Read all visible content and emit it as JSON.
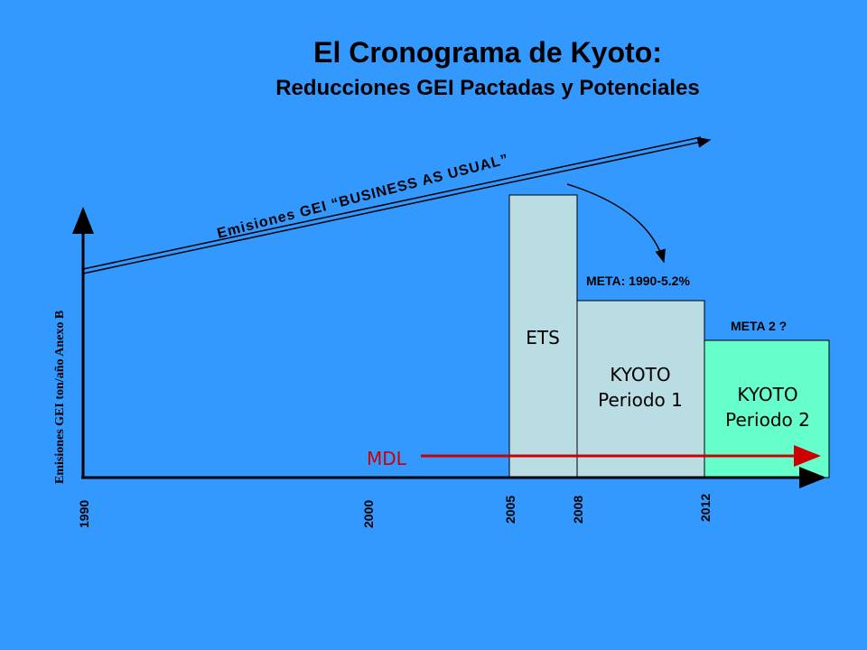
{
  "title": "El Cronograma de Kyoto:",
  "subtitle": "Reducciones GEI Pactadas y Potenciales",
  "y_axis_label": "Emisiones GEI ton/año Anexo B",
  "bau_label": "Emisiones GEI “BUSINESS AS USUAL”",
  "years": [
    "1990",
    "2000",
    "2005",
    "2008",
    "2012"
  ],
  "boxes": {
    "ets": {
      "label": "ETS"
    },
    "kyoto1": {
      "line1": "KYOTO",
      "line2": "Periodo 1"
    },
    "kyoto2": {
      "line1": "KYOTO",
      "line2": "Periodo 2"
    }
  },
  "meta1": "META: 1990-5.2%",
  "meta2": "META 2 ?",
  "mdl_label": "MDL",
  "colors": {
    "background": "#3399ff",
    "ets_fill": "#b9dde3",
    "kyoto1_fill": "#b9dde3",
    "kyoto2_fill": "#66ffcc",
    "mdl_arrow": "#cc0000",
    "axis": "#000000"
  }
}
